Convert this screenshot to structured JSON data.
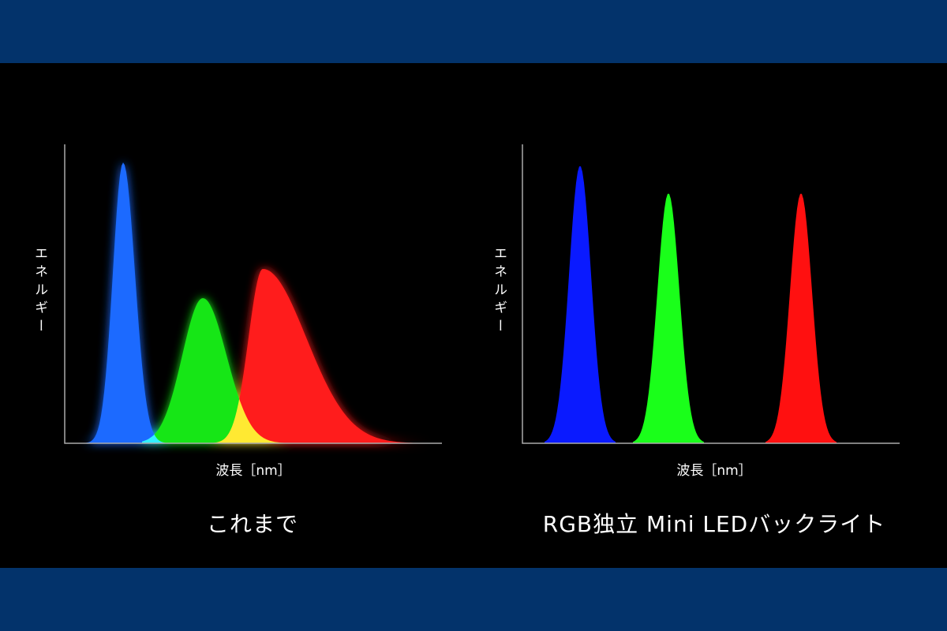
{
  "panels": [
    {
      "y_label": "エネルギー",
      "x_label": "波長［nm］",
      "caption": "これまで"
    },
    {
      "y_label": "エネルギー",
      "x_label": "波長［nm］",
      "caption": "RGB独立 Mini LEDバックライト"
    }
  ]
}
